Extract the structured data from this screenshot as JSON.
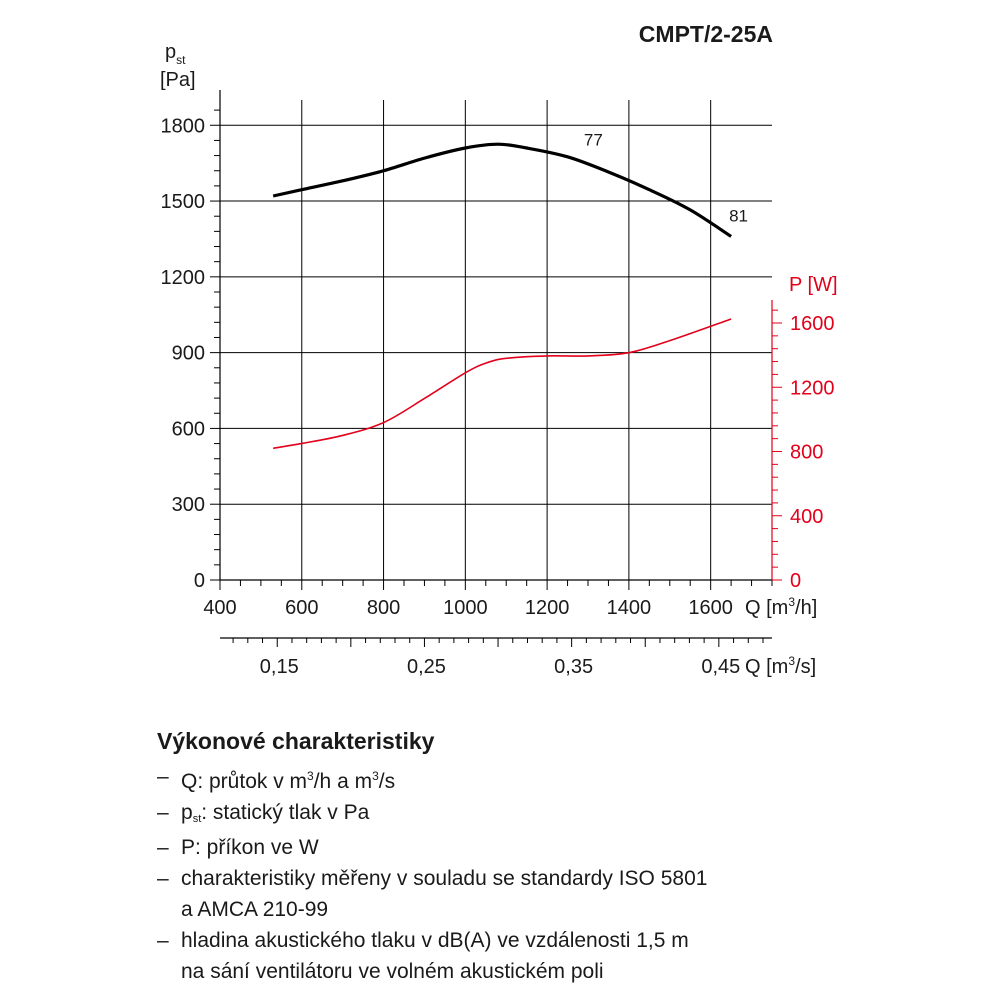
{
  "title": "CMPT/2-25A",
  "chart_data": {
    "type": "line",
    "title": "CMPT/2-25A",
    "x_axis": {
      "label_main": "Q [m",
      "label_sup": "3",
      "label_end": "/h]",
      "range": [
        400,
        1750
      ],
      "ticks": [
        400,
        600,
        800,
        1000,
        1200,
        1400,
        1600
      ]
    },
    "x2_axis": {
      "label_main": "Q [m",
      "label_sup": "3",
      "label_end": "/s]",
      "ticks": [
        {
          "value_m3h": 540,
          "label": "0,15"
        },
        {
          "value_m3h": 900,
          "label": "0,25"
        },
        {
          "value_m3h": 1260,
          "label": "0,35"
        },
        {
          "value_m3h": 1620,
          "label": "0,45"
        }
      ]
    },
    "y_axis": {
      "label_line1_main": "p",
      "label_line1_sub": "st",
      "label_line2": "[Pa]",
      "range": [
        0,
        1900
      ],
      "ticks": [
        0,
        300,
        600,
        900,
        1200,
        1500,
        1800
      ]
    },
    "y2_axis": {
      "label": "P [W]",
      "color": "#e3001b",
      "range": [
        0,
        1600
      ],
      "ticks": [
        0,
        400,
        800,
        1200,
        1600
      ]
    },
    "grid": true,
    "series": [
      {
        "axis": "y",
        "color": "#000000",
        "x": [
          530,
          600,
          700,
          800,
          900,
          1000,
          1080,
          1150,
          1250,
          1350,
          1450,
          1550,
          1650
        ],
        "y": [
          1520,
          1545,
          1580,
          1620,
          1670,
          1710,
          1725,
          1710,
          1675,
          1615,
          1545,
          1465,
          1360
        ]
      },
      {
        "axis": "y2",
        "color": "#e3001b",
        "x": [
          530,
          600,
          700,
          800,
          900,
          1000,
          1050,
          1100,
          1200,
          1300,
          1400,
          1500,
          1650
        ],
        "y": [
          820,
          850,
          900,
          980,
          1130,
          1290,
          1350,
          1380,
          1395,
          1395,
          1415,
          1490,
          1625
        ]
      }
    ],
    "annotations": [
      {
        "text": "77",
        "x": 1290,
        "y": 1720
      },
      {
        "text": "81",
        "x": 1645,
        "y": 1420
      }
    ]
  },
  "legend": {
    "title": "Výkonové charakteristiky",
    "items": [
      {
        "dash": "–",
        "text_a": "Q: průtok v m",
        "sup_a": "3",
        "text_b": "/h a m",
        "sup_b": "3",
        "text_c": "/s"
      },
      {
        "dash": "–",
        "text_a": "p",
        "sub": "st",
        "text_b": ": statický tlak v Pa"
      },
      {
        "dash": "–",
        "text": "P: příkon ve W"
      },
      {
        "dash": "–",
        "line1": "charakteristiky měřeny v souladu se standardy ISO 5801",
        "line2": "a AMCA 210-99"
      },
      {
        "dash": "–",
        "line1": "hladina akustického tlaku v dB(A) ve vzdálenosti 1,5 m",
        "line2": "na sání ventilátoru ve volném akustickém poli"
      }
    ]
  }
}
